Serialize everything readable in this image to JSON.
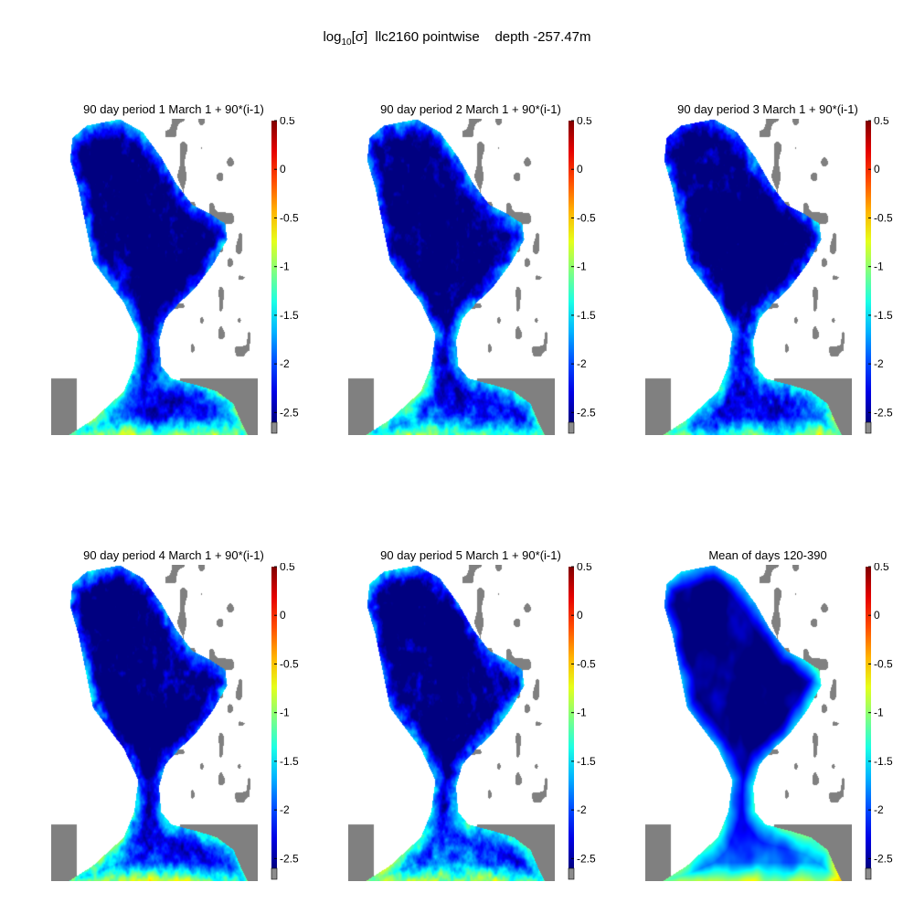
{
  "header": {
    "title_prefix": "log",
    "title_sub": "10",
    "title_rest": "[σ]  llc2160 pointwise    depth -257.47m"
  },
  "colormap": "jet",
  "colors": {
    "land": "#808080",
    "background": "#ffffff",
    "nodata_cell": "#8c8c8c"
  },
  "chart_data": [
    {
      "type": "heatmap",
      "title": "90 day period 1 March 1 + 90*(i-1)",
      "colorbar": {
        "ticks": [
          "0.5",
          "0",
          "-0.5",
          "-1",
          "-1.5",
          "-2",
          "-2.5"
        ],
        "range": [
          -2.6,
          0.5
        ]
      },
      "seed": 11
    },
    {
      "type": "heatmap",
      "title": "90 day period 2 March 1 + 90*(i-1)",
      "colorbar": {
        "ticks": [
          "0.5",
          "0",
          "-0.5",
          "-1",
          "-1.5",
          "-2",
          "-2.5"
        ],
        "range": [
          -2.6,
          0.5
        ]
      },
      "seed": 23
    },
    {
      "type": "heatmap",
      "title": "90 day period 3 March 1 + 90*(i-1)",
      "colorbar": {
        "ticks": [
          "0.5",
          "0",
          "-0.5",
          "-1",
          "-1.5",
          "-2",
          "-2.5"
        ],
        "range": [
          -2.6,
          0.5
        ]
      },
      "seed": 37
    },
    {
      "type": "heatmap",
      "title": "90 day period 4 March 1 + 90*(i-1)",
      "colorbar": {
        "ticks": [
          "0.5",
          "0",
          "-0.5",
          "-1",
          "-1.5",
          "-2",
          "-2.5"
        ],
        "range": [
          -2.6,
          0.5
        ]
      },
      "seed": 41
    },
    {
      "type": "heatmap",
      "title": "90 day period 5 March 1 + 90*(i-1)",
      "colorbar": {
        "ticks": [
          "0.5",
          "0",
          "-0.5",
          "-1",
          "-1.5",
          "-2",
          "-2.5"
        ],
        "range": [
          -2.6,
          0.5
        ]
      },
      "seed": 53
    },
    {
      "type": "heatmap",
      "title": "Mean of days 120-390",
      "colorbar": {
        "ticks": [
          "0.5",
          "0",
          "-0.5",
          "-1",
          "-1.5",
          "-2",
          "-2.5"
        ],
        "range": [
          -2.6,
          0.5
        ]
      },
      "seed": 67,
      "smooth": true
    }
  ]
}
